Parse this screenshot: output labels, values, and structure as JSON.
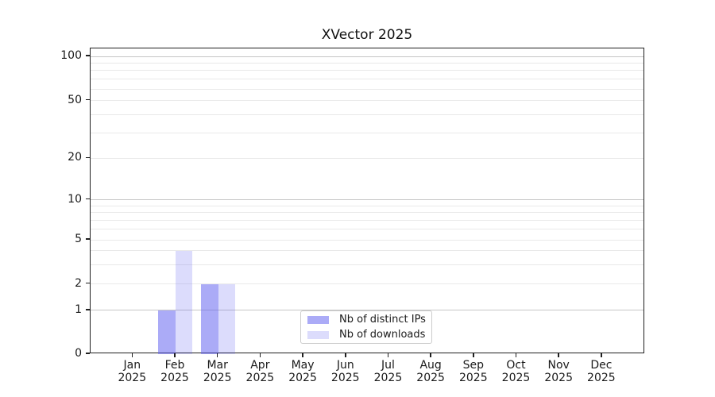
{
  "chart_data": {
    "type": "bar",
    "title": "XVector 2025",
    "categories": [
      "Jan",
      "Feb",
      "Mar",
      "Apr",
      "May",
      "Jun",
      "Jul",
      "Aug",
      "Sep",
      "Oct",
      "Nov",
      "Dec"
    ],
    "x_tick_year_line": "2025",
    "series": [
      {
        "name": "Nb of distinct IPs",
        "color": "rgba(96,96,240,0.53)",
        "color_hex_on_white": "#ababf7",
        "values": [
          0,
          1,
          2,
          0,
          0,
          0,
          0,
          0,
          0,
          0,
          0,
          0
        ]
      },
      {
        "name": "Nb of downloads",
        "color": "rgba(96,96,240,0.22)",
        "color_hex_on_white": "#dcdcfb",
        "values": [
          0,
          4,
          2,
          0,
          0,
          0,
          0,
          0,
          0,
          0,
          0,
          0
        ]
      }
    ],
    "xlabel": "",
    "ylabel": "",
    "y_scale": "log-like (0, then log decades)",
    "y_ticks": [
      0,
      1,
      2,
      5,
      10,
      20,
      50,
      100
    ],
    "y_tick_labels": [
      "0",
      "1",
      "2",
      "5",
      "10",
      "20",
      "50",
      "100"
    ],
    "y_minor_gridlines": [
      3,
      4,
      6,
      7,
      8,
      9,
      30,
      40,
      60,
      70,
      80,
      90
    ],
    "ylim": [
      0,
      100
    ],
    "grid": true,
    "legend_position": "lower center inside plot",
    "colors": {
      "grid_major": "#c6c6c6",
      "grid_minor": "#e9e9e9",
      "spine": "#1f1f1f",
      "text": "#1a1a1a"
    }
  }
}
